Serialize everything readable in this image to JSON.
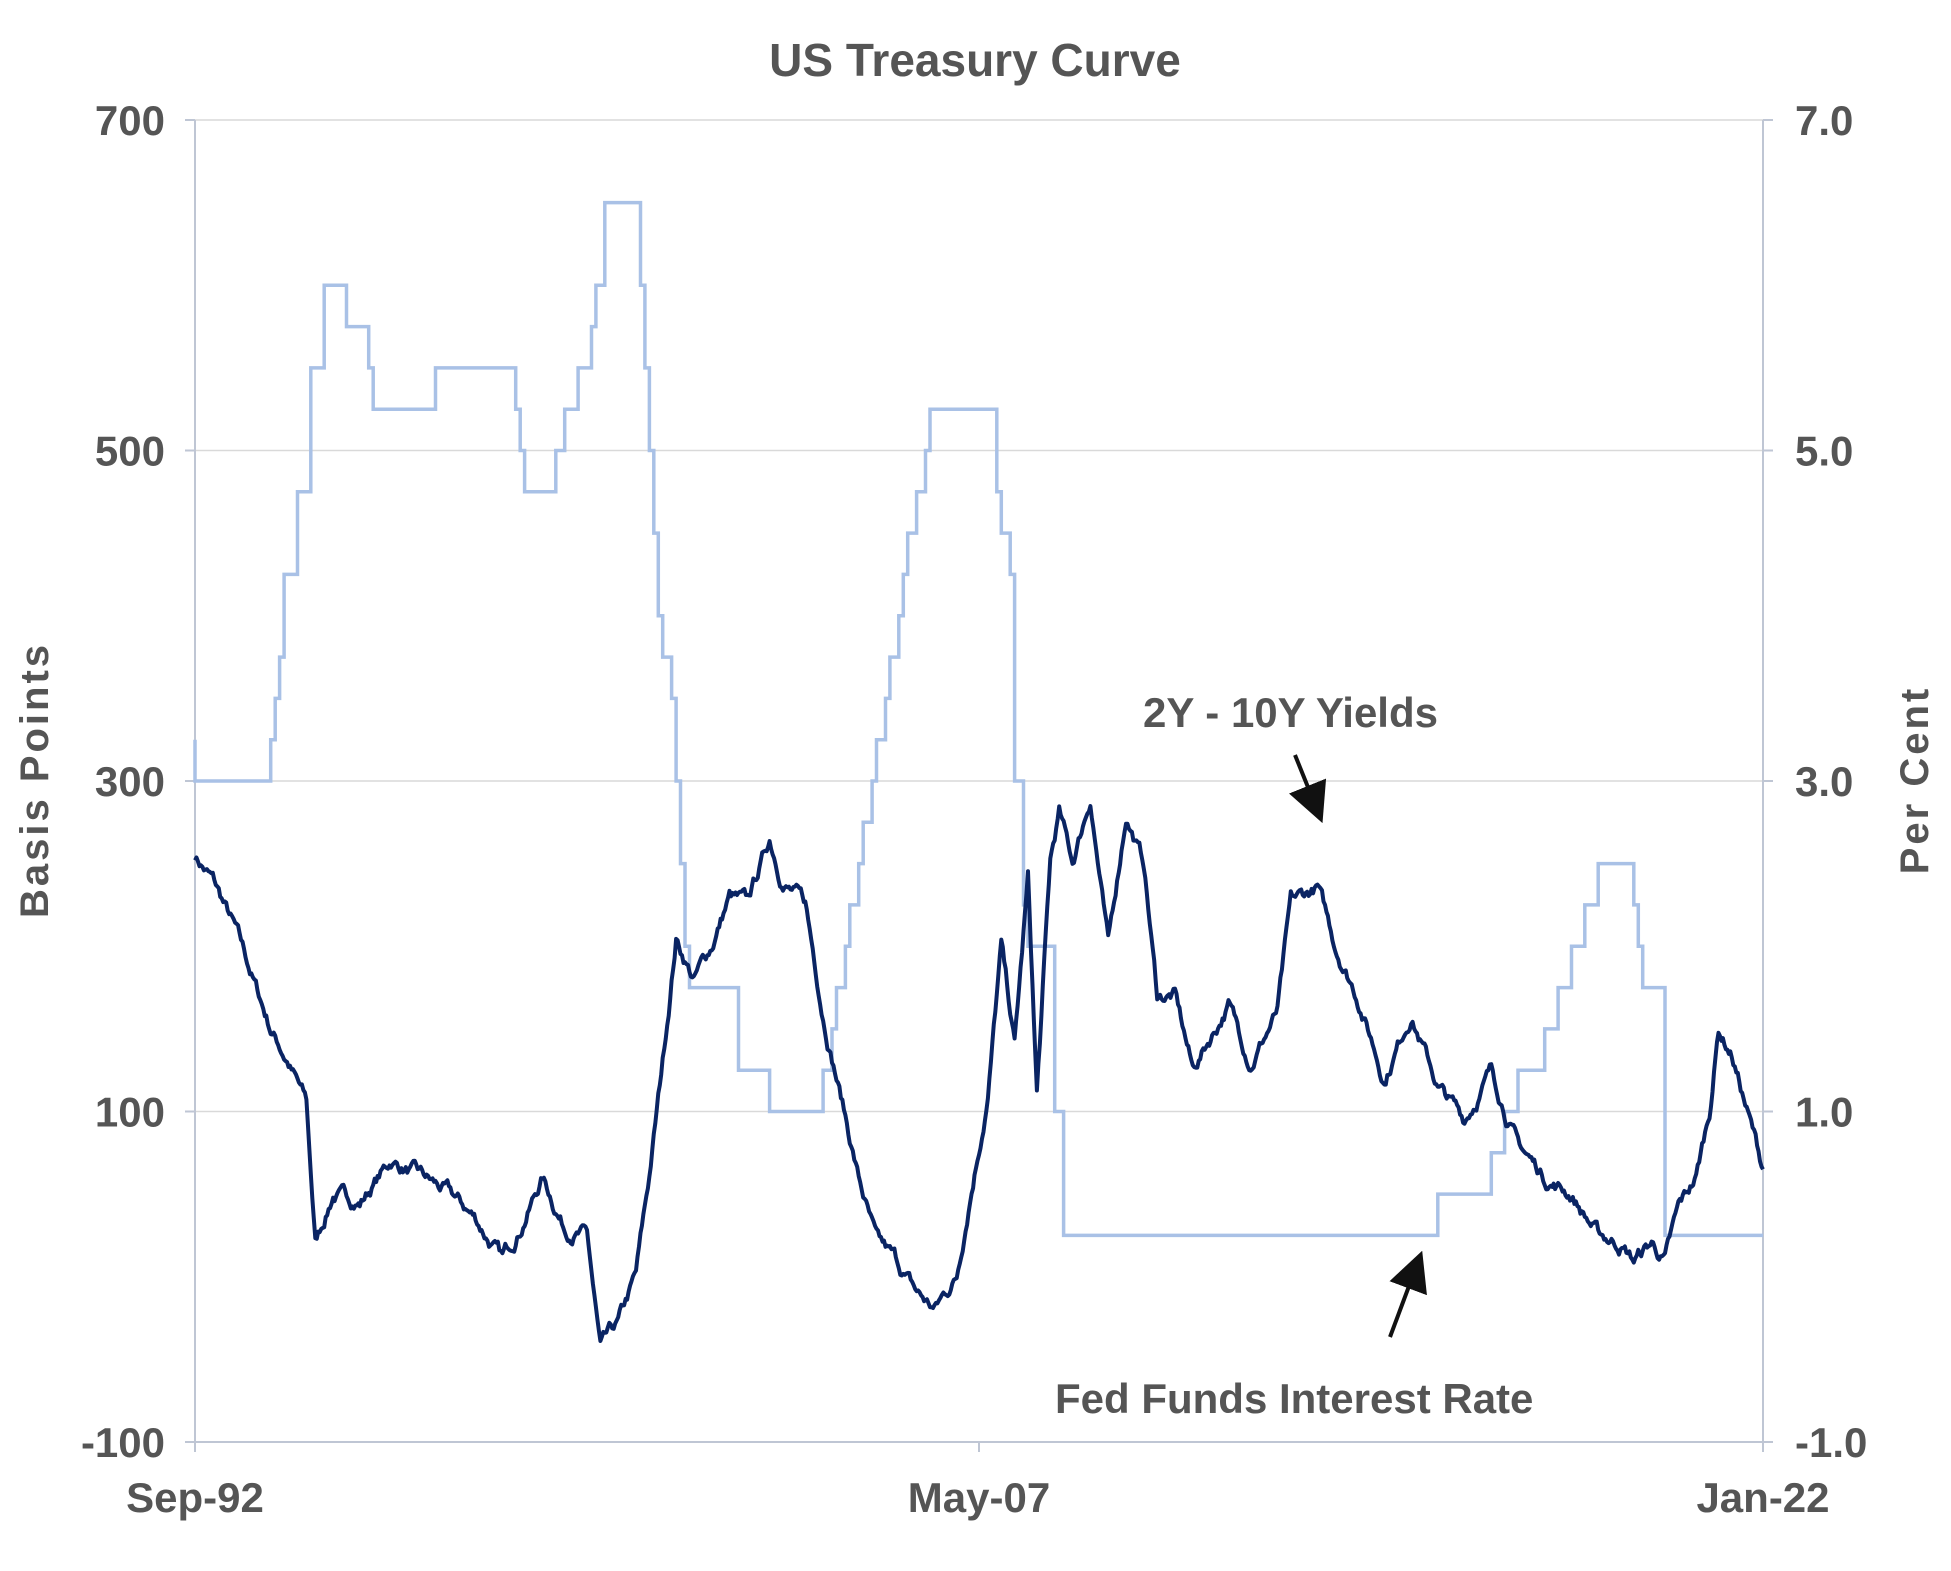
{
  "chart_data": {
    "type": "line",
    "title": "US Treasury Curve",
    "ylabel_left": "Basis  Points",
    "ylabel_right": "Per  Cent",
    "ylim_left": [
      -100,
      700
    ],
    "ylim_right": [
      -1.0,
      7.0
    ],
    "left_ticks": [
      "700",
      "500",
      "300",
      "100",
      "-100"
    ],
    "right_ticks": [
      "7.0",
      "5.0",
      "3.0",
      "1.0",
      "-1.0"
    ],
    "x_ticks": [
      "Sep-92",
      "May-07",
      "Jan-22"
    ],
    "grid": true,
    "colors": {
      "spread": "#0a2463",
      "fed_funds": "#a9c1e6",
      "grid": "#d9d9d9",
      "axis": "#bfc6d4",
      "text": "#555555"
    },
    "series": [
      {
        "name": "2Y - 10Y Yields",
        "axis": "left",
        "x": [
          "1992-09",
          "1993-01",
          "1993-06",
          "1993-10",
          "1994-02",
          "1994-06",
          "1994-10",
          "1994-12",
          "1995-04",
          "1995-10",
          "1996-05",
          "1996-12",
          "1997-06",
          "1997-12",
          "1998-06",
          "1998-10",
          "1999-03",
          "1999-08",
          "2000-01",
          "2000-04",
          "2000-08",
          "2000-12",
          "2001-03",
          "2001-06",
          "2001-09",
          "2002-01",
          "2002-05",
          "2002-09",
          "2003-01",
          "2003-06",
          "2003-09",
          "2004-02",
          "2004-06",
          "2004-10",
          "2005-02",
          "2005-06",
          "2005-10",
          "2006-03",
          "2006-07",
          "2006-12",
          "2007-03",
          "2007-07",
          "2007-10",
          "2008-01",
          "2008-04",
          "2008-06",
          "2008-09",
          "2008-11",
          "2009-02",
          "2009-06",
          "2009-10",
          "2010-02",
          "2010-06",
          "2010-09",
          "2011-01",
          "2011-05",
          "2011-09",
          "2012-01",
          "2012-06",
          "2012-12",
          "2013-03",
          "2013-09",
          "2014-01",
          "2014-06",
          "2014-12",
          "2015-06",
          "2015-12",
          "2016-06",
          "2016-12",
          "2017-06",
          "2017-12",
          "2018-06",
          "2018-12",
          "2019-05",
          "2019-08",
          "2019-12",
          "2020-03",
          "2020-06",
          "2020-10",
          "2021-01",
          "2021-03",
          "2021-06",
          "2021-10",
          "2022-01"
        ],
        "values": [
          255,
          240,
          210,
          180,
          150,
          130,
          105,
          20,
          50,
          45,
          70,
          60,
          50,
          35,
          10,
          30,
          60,
          30,
          25,
          -45,
          -30,
          0,
          60,
          130,
          205,
          180,
          200,
          230,
          225,
          265,
          240,
          225,
          160,
          110,
          60,
          20,
          10,
          -10,
          -20,
          0,
          50,
          110,
          200,
          140,
          240,
          110,
          250,
          280,
          250,
          290,
          200,
          280,
          250,
          170,
          170,
          125,
          145,
          165,
          130,
          160,
          225,
          235,
          200,
          170,
          120,
          160,
          115,
          95,
          125,
          80,
          60,
          50,
          25,
          20,
          10,
          20,
          10,
          40,
          60,
          100,
          150,
          135,
          95,
          65
        ]
      },
      {
        "name": "Fed Funds Interest Rate",
        "axis": "right",
        "x": [
          "1992-09",
          "1994-02",
          "1994-03",
          "1994-04",
          "1994-05",
          "1994-08",
          "1994-11",
          "1995-02",
          "1995-07",
          "1995-12",
          "1996-01",
          "1997-03",
          "1998-09",
          "1998-10",
          "1998-11",
          "1999-06",
          "1999-08",
          "1999-11",
          "2000-02",
          "2000-03",
          "2000-05",
          "2001-01",
          "2001-02",
          "2001-03",
          "2001-04",
          "2001-05",
          "2001-06",
          "2001-08",
          "2001-09",
          "2001-10",
          "2001-11",
          "2001-12",
          "2002-11",
          "2003-06",
          "2004-06",
          "2004-08",
          "2004-09",
          "2004-11",
          "2004-12",
          "2005-02",
          "2005-03",
          "2005-05",
          "2005-06",
          "2005-08",
          "2005-09",
          "2005-11",
          "2005-12",
          "2006-01",
          "2006-03",
          "2006-05",
          "2006-06",
          "2007-09",
          "2007-10",
          "2007-12",
          "2008-01",
          "2008-03",
          "2008-04",
          "2008-10",
          "2008-12",
          "2015-12",
          "2016-12",
          "2017-03",
          "2017-06",
          "2017-12",
          "2018-03",
          "2018-06",
          "2018-09",
          "2018-12",
          "2019-08",
          "2019-09",
          "2019-10",
          "2020-03",
          "2022-01"
        ],
        "values": [
          3.0,
          3.25,
          3.5,
          3.75,
          4.25,
          4.75,
          5.5,
          6.0,
          5.75,
          5.5,
          5.25,
          5.5,
          5.25,
          5.0,
          4.75,
          5.0,
          5.25,
          5.5,
          5.75,
          6.0,
          6.5,
          6.0,
          5.5,
          5.0,
          4.5,
          4.0,
          3.75,
          3.5,
          3.0,
          2.5,
          2.0,
          1.75,
          1.25,
          1.0,
          1.25,
          1.5,
          1.75,
          2.0,
          2.25,
          2.5,
          2.75,
          3.0,
          3.25,
          3.5,
          3.75,
          4.0,
          4.25,
          4.5,
          4.75,
          5.0,
          5.25,
          4.75,
          4.5,
          4.25,
          3.0,
          2.25,
          2.0,
          1.0,
          0.25,
          0.5,
          0.75,
          1.0,
          1.25,
          1.5,
          1.75,
          2.0,
          2.25,
          2.5,
          2.25,
          2.0,
          1.75,
          0.25,
          0.25
        ]
      }
    ],
    "annotations": [
      {
        "text": "2Y - 10Y Yields",
        "points_to": "2Y - 10Y Yields"
      },
      {
        "text": "Fed Funds Interest Rate",
        "points_to": "Fed Funds Interest Rate"
      }
    ]
  }
}
